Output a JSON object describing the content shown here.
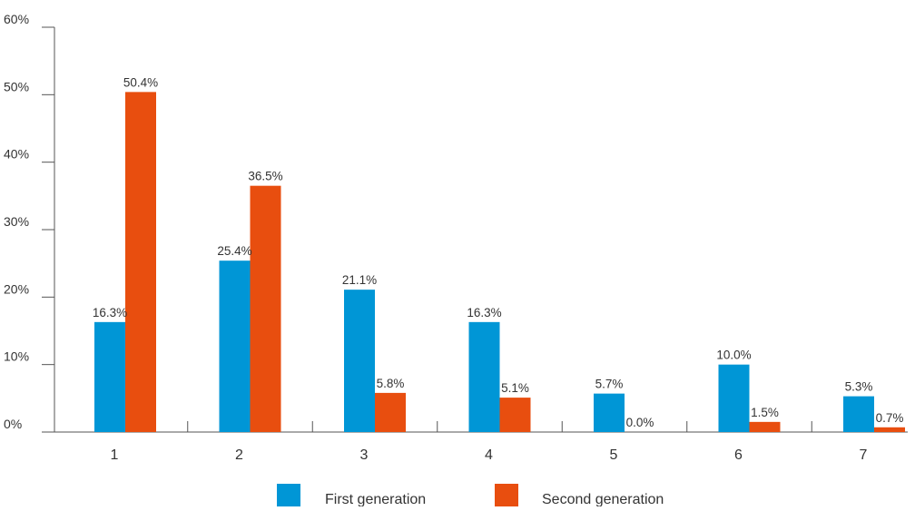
{
  "chart_data": {
    "type": "bar",
    "title": "",
    "xlabel": "",
    "ylabel": "",
    "categories": [
      "1",
      "2",
      "3",
      "4",
      "5",
      "6",
      "7"
    ],
    "ylim": [
      0,
      60
    ],
    "y_ticks": [
      0,
      10,
      20,
      30,
      40,
      50,
      60
    ],
    "y_tick_labels": [
      "0%",
      "10%",
      "20%",
      "30%",
      "40%",
      "50%",
      "60%"
    ],
    "grid": false,
    "legend_position": "bottom",
    "series": [
      {
        "name": "First generation",
        "color": "#0096d6",
        "values": [
          16.3,
          25.4,
          21.1,
          16.3,
          5.7,
          10.0,
          5.3
        ],
        "labels": [
          "16.3%",
          "25.4%",
          "21.1%",
          "16.3%",
          "5.7%",
          "10.0%",
          "5.3%"
        ]
      },
      {
        "name": "Second generation",
        "color": "#e84e0f",
        "values": [
          50.4,
          36.5,
          5.8,
          5.1,
          0.0,
          1.5,
          0.7
        ],
        "labels": [
          "50.4%",
          "36.5%",
          "5.8%",
          "5.1%",
          "0.0%",
          "1.5%",
          "0.7%"
        ]
      }
    ]
  }
}
